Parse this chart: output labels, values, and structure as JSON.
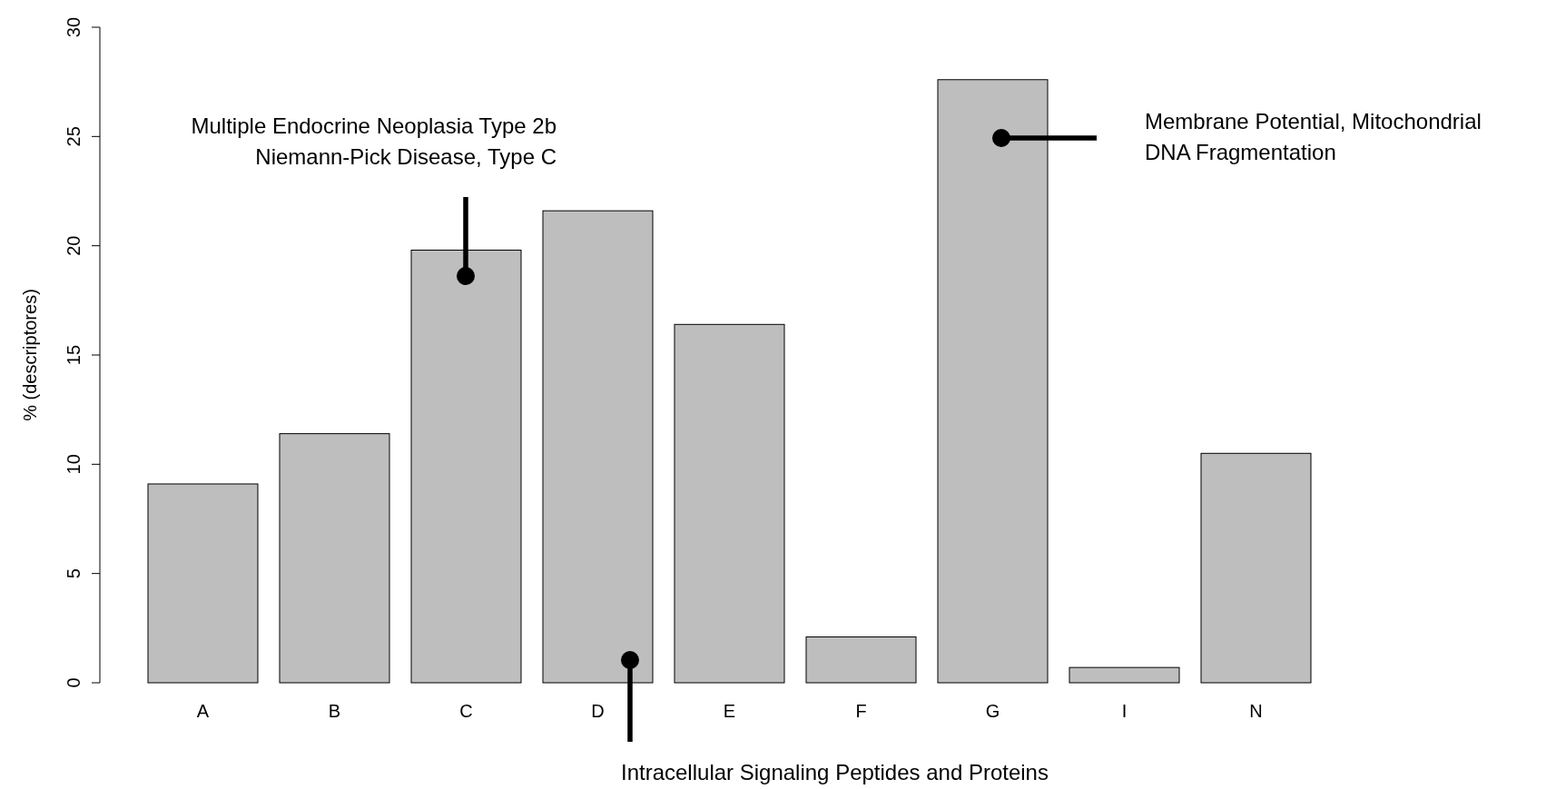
{
  "chart_data": {
    "type": "bar",
    "ylabel": "% (descriptores)",
    "categories": [
      "A",
      "B",
      "C",
      "D",
      "E",
      "F",
      "G",
      "I",
      "N"
    ],
    "values": [
      9.1,
      11.4,
      19.8,
      21.6,
      16.4,
      2.1,
      27.6,
      0.7,
      10.5
    ],
    "color": "#bebebe",
    "ylim": [
      0,
      30
    ],
    "yticks": [
      0,
      5,
      10,
      15,
      20,
      25,
      30
    ],
    "grid": false,
    "annotations": [
      "Multiple Endocrine Neoplasia Type 2b\nNiemann-Pick Disease, Type C",
      "Membrane Potential, Mitochondrial\nDNA Fragmentation",
      "Intracellular Signaling Peptides and Proteins"
    ]
  }
}
